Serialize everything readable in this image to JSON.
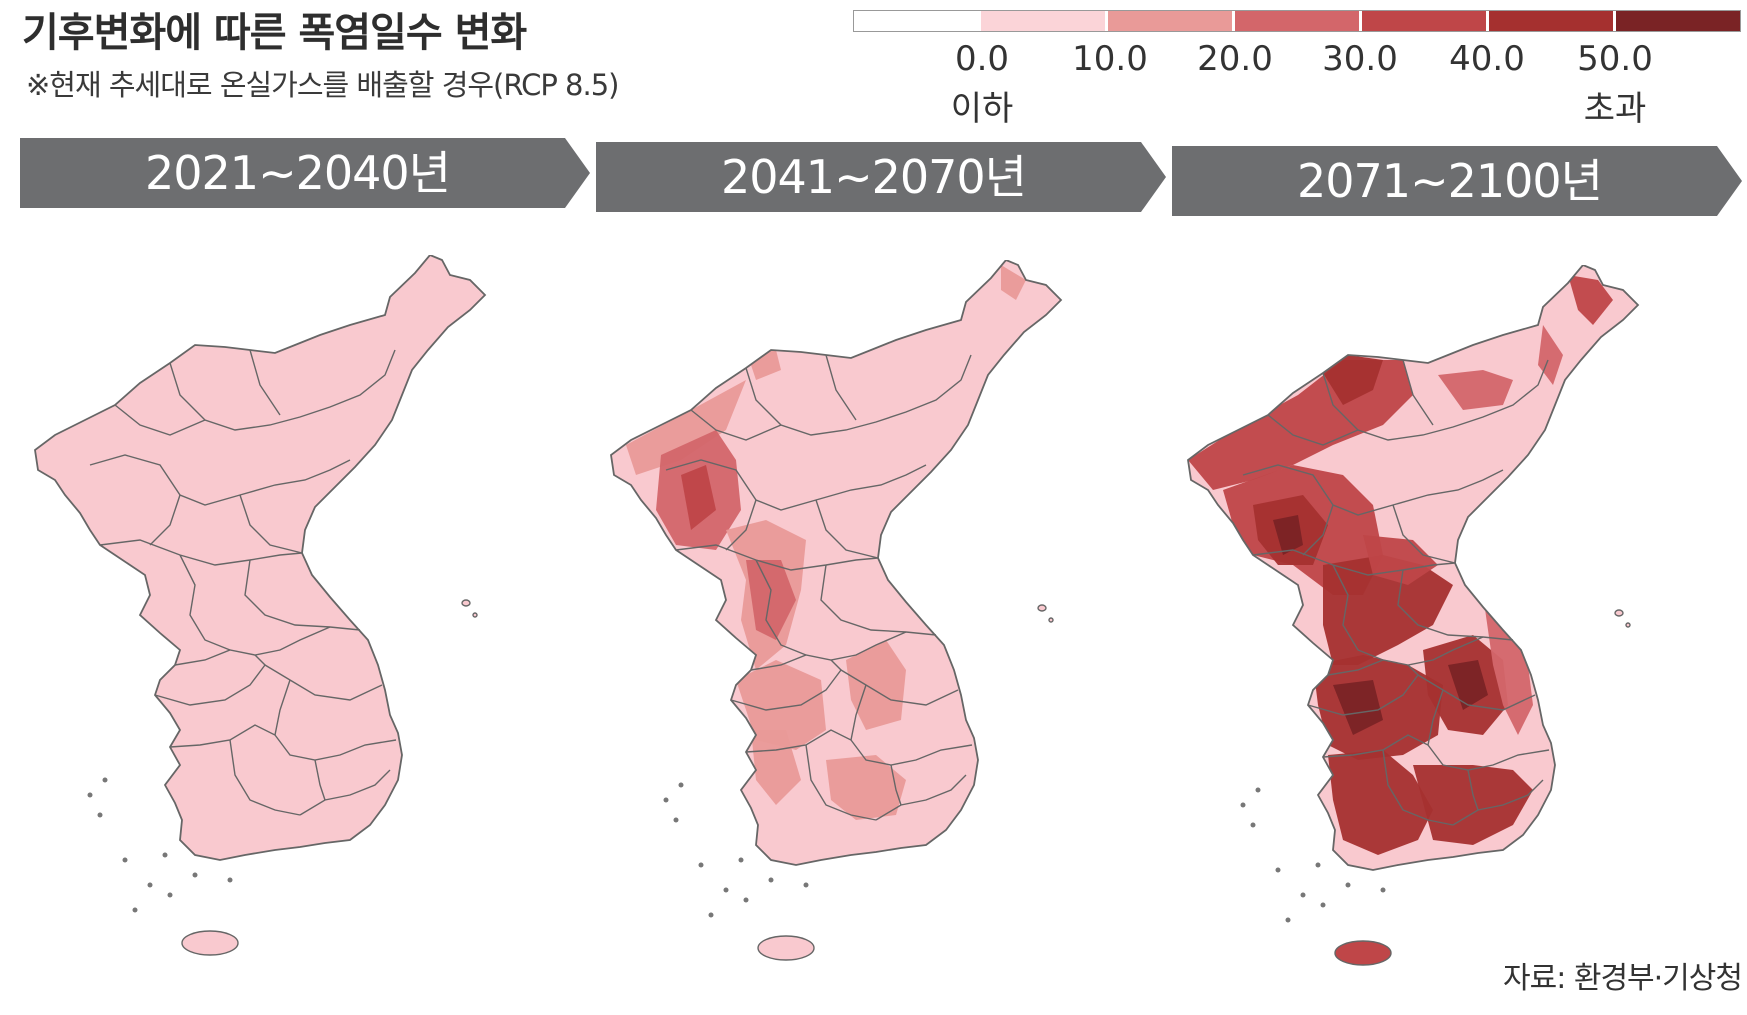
{
  "header": {
    "title": "기후변화에 따른 폭염일수 변화",
    "subtitle": "※현재 추세대로 온실가스를 배출할 경우(RCP 8.5)"
  },
  "legend": {
    "colors": [
      "#ffffff",
      "#fbd4d8",
      "#e99a98",
      "#d3666a",
      "#bf4648",
      "#a5302f",
      "#7a2325"
    ],
    "labels": [
      {
        "line1": "0.0",
        "line2": "이하"
      },
      {
        "line1": "10.0",
        "line2": ""
      },
      {
        "line1": "20.0",
        "line2": ""
      },
      {
        "line1": "30.0",
        "line2": ""
      },
      {
        "line1": "40.0",
        "line2": ""
      },
      {
        "line1": "50.0",
        "line2": "초과"
      }
    ]
  },
  "periods": [
    {
      "label": "2021~2040년",
      "intensity": 0
    },
    {
      "label": "2041~2070년",
      "intensity": 1
    },
    {
      "label": "2071~2100년",
      "intensity": 2
    }
  ],
  "source": "자료: 환경부·기상청",
  "colors": {
    "arrow": "#6d6e70",
    "border": "#666666",
    "map_base": "#f9c9cf"
  }
}
